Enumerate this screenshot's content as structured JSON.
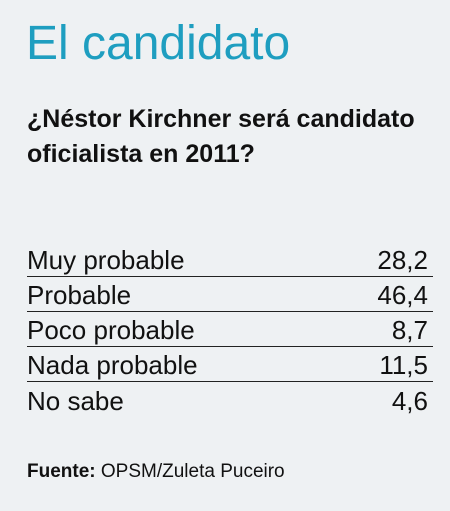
{
  "header": {
    "title": "El candidato",
    "question": "¿Néstor Kirchner será candidato oficialista en 2011?"
  },
  "chart_data": {
    "type": "table",
    "categories": [
      "Muy probable",
      "Probable",
      "Poco probable",
      "Nada probable",
      "No sabe"
    ],
    "values": [
      "28,2",
      "46,4",
      "8,7",
      "11,5",
      "4,6"
    ]
  },
  "footer": {
    "source_label": "Fuente:",
    "source_text": "OPSM/Zuleta Puceiro"
  },
  "colors": {
    "title": "#1e9ec0",
    "background": "#eef1f3"
  }
}
